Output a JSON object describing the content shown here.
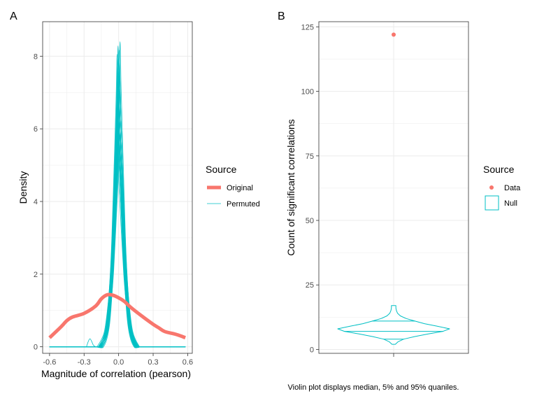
{
  "colors": {
    "original": "#F8766D",
    "permuted": "#00BFC4",
    "grid": "#ebebeb",
    "panel_border": "#333333"
  },
  "chart_data": [
    {
      "panel": "A",
      "type": "line",
      "title": "",
      "xlabel": "Magnitude of correlation (pearson)",
      "ylabel": "Density",
      "xlim": [
        -0.66,
        0.64
      ],
      "ylim": [
        -0.18,
        8.95
      ],
      "xticks": [
        -0.6,
        -0.3,
        0.0,
        0.3,
        0.6
      ],
      "xtick_labels": [
        "-0.6",
        "-0.3",
        "0.0",
        "0.3",
        "0.6"
      ],
      "yticks": [
        0,
        2,
        4,
        6,
        8
      ],
      "ytick_labels": [
        "0",
        "2",
        "4",
        "6",
        "8"
      ],
      "legend": {
        "title": "Source",
        "entries": [
          "Original",
          "Permuted"
        ],
        "placement": "right"
      },
      "series": [
        {
          "name": "Original",
          "x": [
            -0.6,
            -0.5,
            -0.45,
            -0.4,
            -0.3,
            -0.2,
            -0.15,
            -0.1,
            -0.05,
            0.0,
            0.05,
            0.1,
            0.2,
            0.3,
            0.35,
            0.4,
            0.5,
            0.58
          ],
          "y": [
            0.25,
            0.55,
            0.72,
            0.82,
            0.92,
            1.12,
            1.32,
            1.43,
            1.42,
            1.35,
            1.25,
            1.1,
            0.85,
            0.62,
            0.52,
            0.42,
            0.34,
            0.25
          ]
        },
        {
          "name": "Permuted",
          "x": [
            -0.6,
            -0.2,
            -0.15,
            -0.1,
            -0.07,
            -0.05,
            -0.03,
            -0.01,
            0.0,
            0.01,
            0.03,
            0.05,
            0.07,
            0.1,
            0.15,
            0.2,
            0.58
          ],
          "y": [
            0,
            0,
            0.02,
            0.5,
            1.5,
            2.6,
            4.3,
            6.1,
            7.2,
            6.1,
            4.3,
            2.6,
            1.5,
            0.5,
            0.02,
            0,
            0
          ],
          "peak_range": [
            5.5,
            8.4
          ],
          "n_curves": 26
        }
      ]
    },
    {
      "panel": "B",
      "type": "violin",
      "title": "",
      "xlabel": "",
      "ylabel": "Count of significant correlations",
      "ylim": [
        -1.5,
        127
      ],
      "yticks": [
        0,
        25,
        50,
        75,
        100,
        125
      ],
      "ytick_labels": [
        "0",
        "25",
        "50",
        "75",
        "100",
        "125"
      ],
      "legend": {
        "title": "Source",
        "entries": [
          "Data",
          "Null"
        ],
        "placement": "right"
      },
      "data_point": {
        "name": "Data",
        "value": 122
      },
      "null_violin": {
        "name": "Null",
        "profile_y": [
          2,
          3,
          4,
          5,
          6,
          7,
          8,
          9,
          10,
          11,
          12,
          13,
          14,
          15,
          16,
          17
        ],
        "profile_halfwidth": [
          0.03,
          0.08,
          0.18,
          0.38,
          0.62,
          0.88,
          1.0,
          0.78,
          0.55,
          0.38,
          0.22,
          0.12,
          0.07,
          0.05,
          0.04,
          0.04
        ],
        "quantile_lines": [
          4,
          7,
          11
        ],
        "quantile_halfwidth": [
          0.18,
          0.88,
          0.38
        ]
      }
    }
  ],
  "caption": "Violin plot displays median, 5% and 95% quaniles."
}
